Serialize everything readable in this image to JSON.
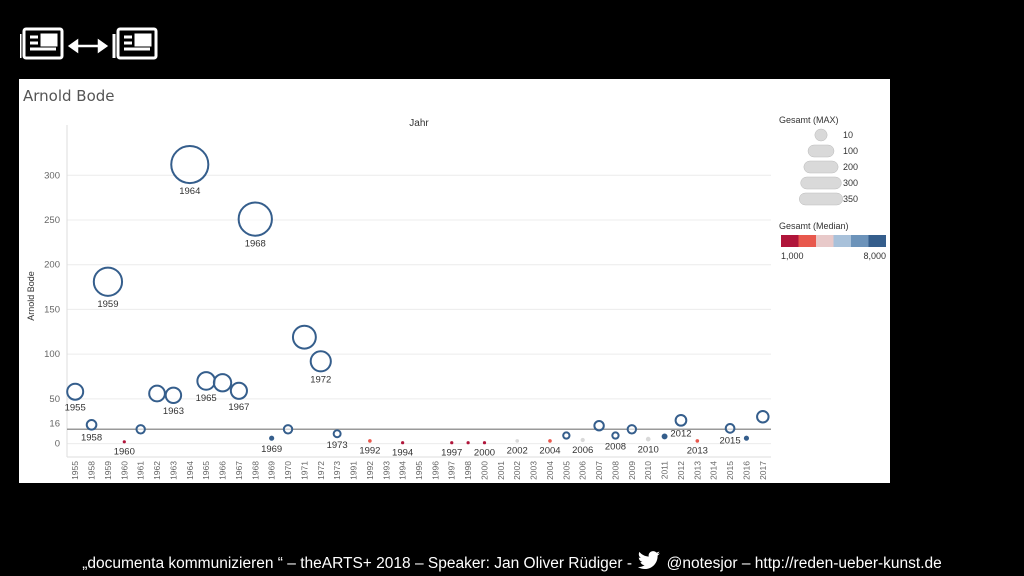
{
  "slide": {
    "footer_part1": "„documenta kommunizieren “ – theARTS+ 2018 – Speaker: Jan Oliver Rüdiger -",
    "footer_part2": " @notesjor – http://reden-ueber-kunst.de",
    "icons": [
      "newspaper-icon",
      "double-arrow-icon",
      "newspaper-icon",
      "twitter-bird-icon"
    ]
  },
  "chart_data": {
    "type": "scatter",
    "title": "Arnold Bode",
    "top_header": "Jahr",
    "ylabel": "Arnold Bode",
    "ylim": [
      -15,
      345
    ],
    "yticks": [
      0,
      50,
      100,
      150,
      200,
      250,
      300
    ],
    "reference_line": {
      "value": 16,
      "label": "16"
    },
    "categories": [
      "1955",
      "1958",
      "1959",
      "1960",
      "1961",
      "1962",
      "1963",
      "1964",
      "1965",
      "1966",
      "1967",
      "1968",
      "1969",
      "1970",
      "1971",
      "1972",
      "1973",
      "1991",
      "1992",
      "1993",
      "1994",
      "1995",
      "1996",
      "1997",
      "1998",
      "2000",
      "2001",
      "2002",
      "2003",
      "2004",
      "2005",
      "2006",
      "2007",
      "2008",
      "2009",
      "2010",
      "2011",
      "2012",
      "2013",
      "2014",
      "2015",
      "2016",
      "2017"
    ],
    "points": [
      {
        "x": "1955",
        "y": 58,
        "color": "#355e8c",
        "label": "1955"
      },
      {
        "x": "1958",
        "y": 21,
        "color": "#355e8c",
        "label": "1958"
      },
      {
        "x": "1959",
        "y": 181,
        "color": "#355e8c",
        "label": "1959"
      },
      {
        "x": "1960",
        "y": 2,
        "color": "#b0153a",
        "label": "1960"
      },
      {
        "x": "1961",
        "y": 16,
        "color": "#355e8c",
        "label": ""
      },
      {
        "x": "1962",
        "y": 56,
        "color": "#355e8c",
        "label": ""
      },
      {
        "x": "1963",
        "y": 54,
        "color": "#355e8c",
        "label": "1963"
      },
      {
        "x": "1964",
        "y": 312,
        "color": "#355e8c",
        "label": "1964"
      },
      {
        "x": "1965",
        "y": 70,
        "color": "#355e8c",
        "label": "1965"
      },
      {
        "x": "1966",
        "y": 68,
        "color": "#355e8c",
        "label": ""
      },
      {
        "x": "1967",
        "y": 59,
        "color": "#355e8c",
        "label": "1967"
      },
      {
        "x": "1968",
        "y": 251,
        "color": "#355e8c",
        "label": "1968"
      },
      {
        "x": "1969",
        "y": 6,
        "color": "#355e8c",
        "label": "1969"
      },
      {
        "x": "1970",
        "y": 16,
        "color": "#355e8c",
        "label": ""
      },
      {
        "x": "1971",
        "y": 119,
        "color": "#355e8c",
        "label": ""
      },
      {
        "x": "1972",
        "y": 92,
        "color": "#355e8c",
        "label": "1972"
      },
      {
        "x": "1973",
        "y": 11,
        "color": "#355e8c",
        "label": "1973"
      },
      {
        "x": "1992",
        "y": 3,
        "color": "#e8584d",
        "label": "1992"
      },
      {
        "x": "1994",
        "y": 1,
        "color": "#b0153a",
        "label": "1994"
      },
      {
        "x": "1997",
        "y": 1,
        "color": "#b0153a",
        "label": "1997"
      },
      {
        "x": "1998",
        "y": 1,
        "color": "#b0153a",
        "label": ""
      },
      {
        "x": "2000",
        "y": 1,
        "color": "#b0153a",
        "label": "2000"
      },
      {
        "x": "2002",
        "y": 3,
        "color": "#d9d9d9",
        "label": "2002"
      },
      {
        "x": "2004",
        "y": 3,
        "color": "#e8584d",
        "label": "2004"
      },
      {
        "x": "2005",
        "y": 9,
        "color": "#355e8c",
        "label": ""
      },
      {
        "x": "2006",
        "y": 4,
        "color": "#d9d9d9",
        "label": "2006"
      },
      {
        "x": "2007",
        "y": 20,
        "color": "#355e8c",
        "label": ""
      },
      {
        "x": "2008",
        "y": 9,
        "color": "#355e8c",
        "label": "2008"
      },
      {
        "x": "2009",
        "y": 16,
        "color": "#355e8c",
        "label": ""
      },
      {
        "x": "2010",
        "y": 5,
        "color": "#d9d9d9",
        "label": "2010"
      },
      {
        "x": "2011",
        "y": 8,
        "color": "#355e8c",
        "label": ""
      },
      {
        "x": "2012",
        "y": 26,
        "color": "#355e8c",
        "label": "2012"
      },
      {
        "x": "2013",
        "y": 3,
        "color": "#e8584d",
        "label": "2013"
      },
      {
        "x": "2015",
        "y": 17,
        "color": "#355e8c",
        "label": "2015"
      },
      {
        "x": "2016",
        "y": 6,
        "color": "#355e8c",
        "label": ""
      },
      {
        "x": "2017",
        "y": 30,
        "color": "#355e8c",
        "label": ""
      }
    ],
    "size_legend": {
      "title": "Gesamt (MAX)",
      "values": [
        10,
        100,
        200,
        300,
        350
      ]
    },
    "color_legend": {
      "title": "Gesamt (Median)",
      "min_label": "1,000",
      "max_label": "8,000",
      "colors": [
        "#b0153a",
        "#e8584d",
        "#e8c9c9",
        "#a8c1da",
        "#6c93ba",
        "#355e8c"
      ]
    }
  }
}
